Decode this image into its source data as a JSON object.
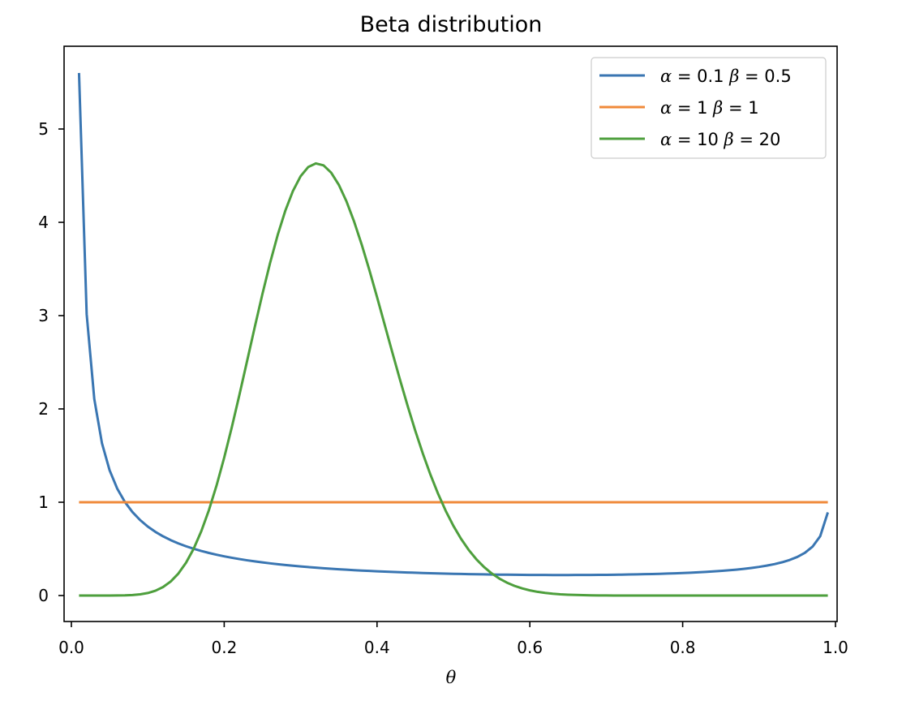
{
  "chart_data": {
    "type": "line",
    "title": "Beta distribution",
    "xlabel": "θ",
    "ylabel": "",
    "xlim": [
      -0.039,
      1.039
    ],
    "ylim": [
      -0.28,
      5.88
    ],
    "xticks": [
      "0.0",
      "0.2",
      "0.4",
      "0.6",
      "0.8",
      "1.0"
    ],
    "yticks": [
      "0",
      "1",
      "2",
      "3",
      "4",
      "5"
    ],
    "grid": false,
    "legend_position": "upper right",
    "series": [
      {
        "name": "α = 0.1 β = 0.5",
        "label_parts": {
          "a": "α",
          "a_val": "0.1",
          "b": "β",
          "b_val": "0.5"
        },
        "color": "#3a76b2",
        "alpha": 0.1,
        "beta": 0.5,
        "x_range": [
          0.01,
          0.99
        ],
        "peak_start_value": 5.6,
        "end_value": 0.9
      },
      {
        "name": "α = 1 β = 1",
        "label_parts": {
          "a": "α",
          "a_val": "1",
          "b": "β",
          "b_val": "1"
        },
        "color": "#f08a3a",
        "alpha": 1,
        "beta": 1,
        "x_range": [
          0.01,
          0.99
        ],
        "constant_value": 1.0
      },
      {
        "name": "α = 10 β = 20",
        "label_parts": {
          "a": "α",
          "a_val": "10",
          "b": "β",
          "b_val": "20"
        },
        "color": "#4e9f3d",
        "alpha": 10,
        "beta": 20,
        "x_range": [
          0.01,
          0.99
        ],
        "peak_x": 0.32,
        "peak_value": 4.62
      }
    ]
  }
}
